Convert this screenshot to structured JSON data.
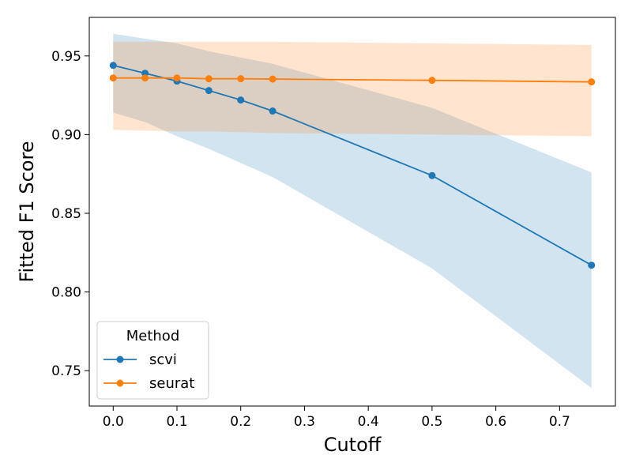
{
  "chart_data": {
    "type": "line",
    "title": "",
    "xlabel": "Cutoff",
    "ylabel": "Fitted F1 Score",
    "xlim": [
      -0.0375,
      0.7875
    ],
    "ylim": [
      0.7275,
      0.9745
    ],
    "xticks": [
      0.0,
      0.1,
      0.2,
      0.3,
      0.4,
      0.5,
      0.6,
      0.7
    ],
    "xtick_labels": [
      "0.0",
      "0.1",
      "0.2",
      "0.3",
      "0.4",
      "0.5",
      "0.6",
      "0.7"
    ],
    "yticks": [
      0.75,
      0.8,
      0.85,
      0.9,
      0.95
    ],
    "ytick_labels": [
      "0.75",
      "0.80",
      "0.85",
      "0.90",
      "0.95"
    ],
    "grid": false,
    "legend": {
      "title": "Method",
      "placement": "lower-left"
    },
    "x": [
      0.0,
      0.05,
      0.1,
      0.15,
      0.2,
      0.25,
      0.5,
      0.75
    ],
    "series": [
      {
        "name": "scvi",
        "color": "#1f77b4",
        "band_color": "#1f77b4",
        "values": [
          0.944,
          0.939,
          0.934,
          0.928,
          0.922,
          0.915,
          0.874,
          0.817
        ],
        "lower": [
          0.914,
          0.908,
          0.899,
          0.891,
          0.882,
          0.873,
          0.815,
          0.739
        ],
        "upper": [
          0.964,
          0.961,
          0.958,
          0.953,
          0.949,
          0.945,
          0.917,
          0.876
        ]
      },
      {
        "name": "seurat",
        "color": "#ff7f0e",
        "band_color": "#ff7f0e",
        "values": [
          0.936,
          0.936,
          0.936,
          0.9355,
          0.9355,
          0.9353,
          0.9345,
          0.9335
        ],
        "lower": [
          0.903,
          0.9025,
          0.902,
          0.902,
          0.9015,
          0.901,
          0.9,
          0.899
        ],
        "upper": [
          0.959,
          0.959,
          0.959,
          0.959,
          0.959,
          0.959,
          0.958,
          0.957
        ]
      }
    ]
  }
}
